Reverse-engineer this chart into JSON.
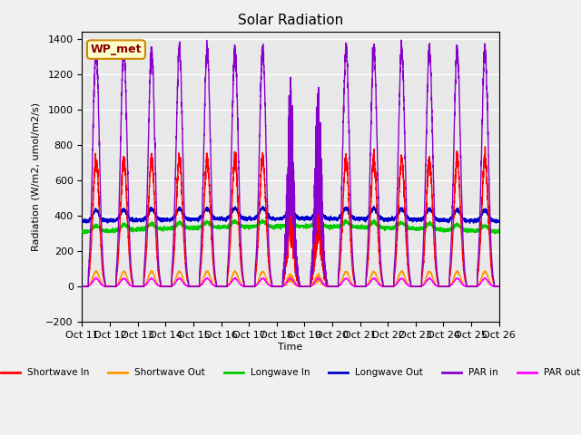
{
  "title": "Solar Radiation",
  "xlabel": "Time",
  "ylabel": "Radiation (W/m2, umol/m2/s)",
  "ylim": [
    -200,
    1440
  ],
  "yticks": [
    -200,
    0,
    200,
    400,
    600,
    800,
    1000,
    1200,
    1400
  ],
  "station_label": "WP_met",
  "x_tick_labels": [
    "Oct 11",
    "Oct 12",
    "Oct 13",
    "Oct 14",
    "Oct 15",
    "Oct 16",
    "Oct 17",
    "Oct 18",
    "Oct 19",
    "Oct 20",
    "Oct 21",
    "Oct 22",
    "Oct 23",
    "Oct 24",
    "Oct 25",
    "Oct 26"
  ],
  "colors": {
    "shortwave_in": "#ff0000",
    "shortwave_out": "#ff9900",
    "longwave_in": "#00cc00",
    "longwave_out": "#0000cc",
    "par_in": "#8800cc",
    "par_out": "#ff00ff"
  },
  "legend_labels": [
    "Shortwave In",
    "Shortwave Out",
    "Longwave In",
    "Longwave Out",
    "PAR in",
    "PAR out"
  ],
  "background_color": "#e8e8e8",
  "grid_color": "#ffffff",
  "num_days": 15,
  "pts_per_day": 288
}
